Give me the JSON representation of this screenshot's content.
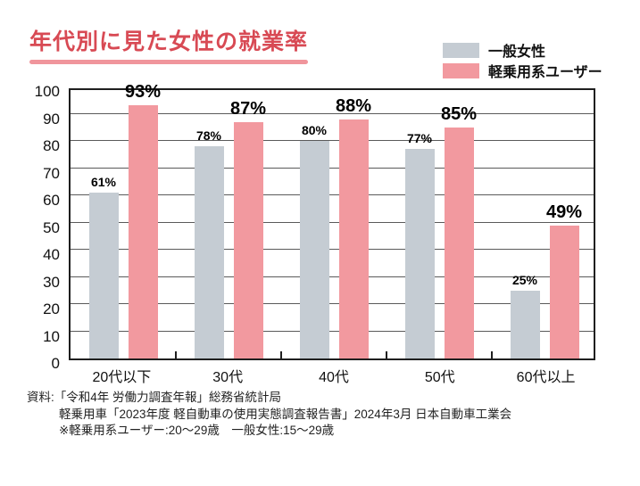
{
  "title": "年代別に見た女性の就業率",
  "chart_data": {
    "type": "bar",
    "title": "年代別に見た女性の就業率",
    "categories": [
      "20代以下",
      "30代",
      "40代",
      "50代",
      "60代以上"
    ],
    "series": [
      {
        "name": "一般女性",
        "color": "#c5ccd3",
        "values": [
          61,
          78,
          80,
          77,
          25
        ]
      },
      {
        "name": "軽乗用系ユーザー",
        "color": "#f2999f",
        "values": [
          93,
          87,
          88,
          85,
          49
        ]
      }
    ],
    "value_suffix": "%",
    "ylabel": "",
    "xlabel": "",
    "ylim": [
      0,
      100
    ],
    "y_ticks": [
      0,
      10,
      20,
      30,
      40,
      50,
      60,
      70,
      80,
      90,
      100
    ],
    "grid": true,
    "legend_position": "top-right"
  },
  "footer": {
    "line1": "資料:「令和4年 労働力調査年報」総務省統計局",
    "line2": "軽乗用車「2023年度 軽自動車の使用実態調査報告書」2024年3月 日本自動車工業会",
    "line3": "※軽乗用系ユーザー:20〜29歳　一般女性:15〜29歳"
  },
  "colors": {
    "title_text": "#d84a54",
    "title_underline": "#f0959c",
    "bar_general": "#c5ccd3",
    "bar_user": "#f2999f",
    "gridline": "#5a5a5a",
    "axis": "#1f1f1f",
    "text": "#111111"
  }
}
